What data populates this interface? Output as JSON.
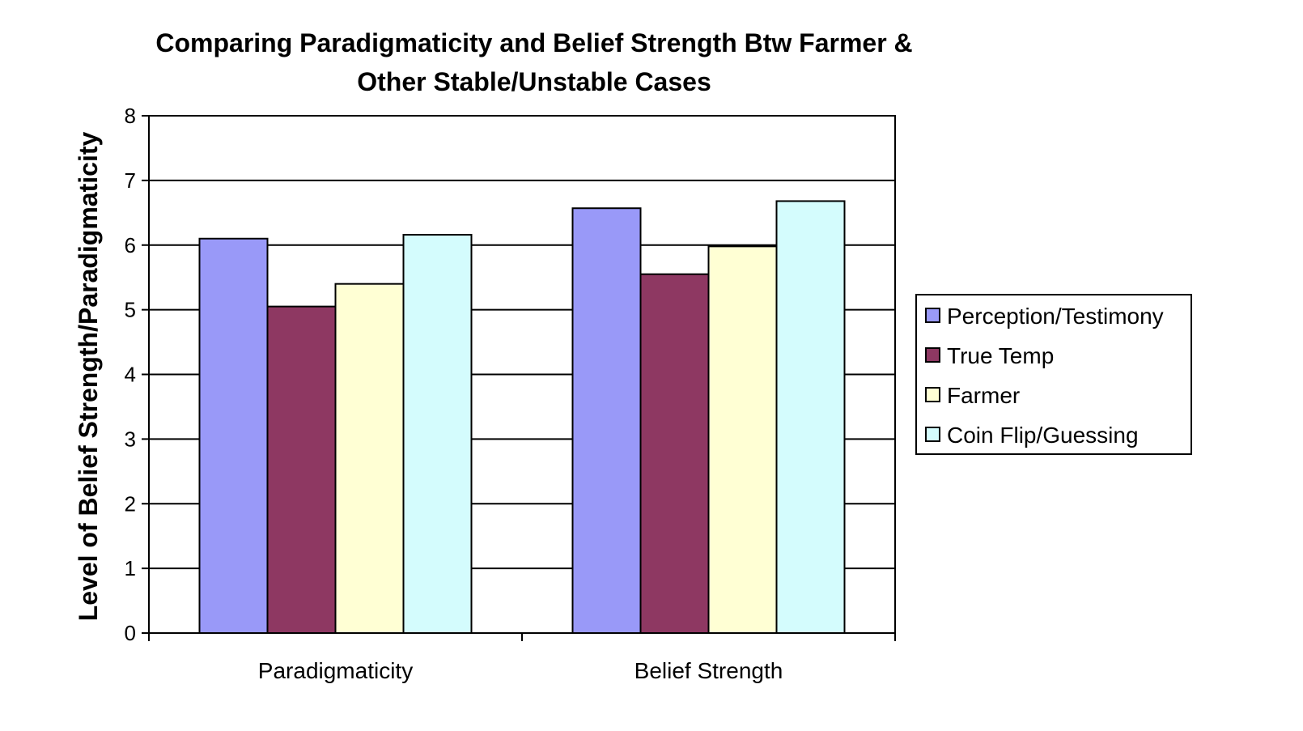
{
  "chart_data": {
    "type": "bar",
    "title_lines": [
      "Comparing Paradigmaticity and Belief Strength Btw Farmer &",
      "Other Stable/Unstable Cases"
    ],
    "xlabel": "",
    "ylabel": "Level of Belief Strength/Paradigmaticity",
    "ylim": [
      0,
      8
    ],
    "yticks": [
      "0",
      "1",
      "2",
      "3",
      "4",
      "5",
      "6",
      "7",
      "8"
    ],
    "categories": [
      "Paradigmaticity",
      "Belief Strength"
    ],
    "series": [
      {
        "name": "Perception/Testimony",
        "values": [
          6.1,
          6.57
        ],
        "color": "#9999f8"
      },
      {
        "name": "True Temp",
        "values": [
          5.05,
          5.55
        ],
        "color": "#8e3862"
      },
      {
        "name": "Farmer",
        "values": [
          5.4,
          5.98
        ],
        "color": "#ffffd4"
      },
      {
        "name": "Coin Flip/Guessing",
        "values": [
          6.16,
          6.68
        ],
        "color": "#d4fcfd"
      }
    ],
    "grid": "horizontal",
    "legend_position": "right"
  }
}
